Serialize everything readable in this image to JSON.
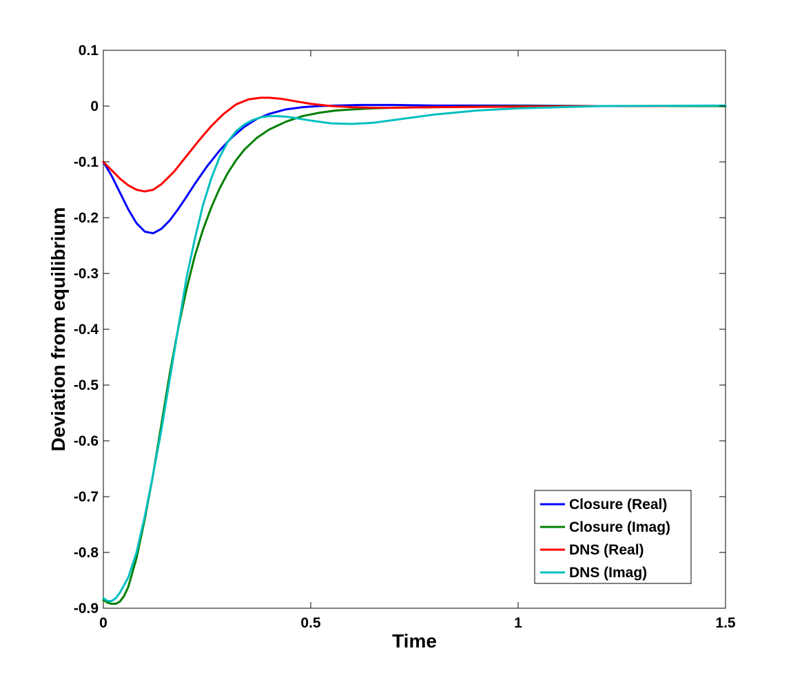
{
  "chart_data": {
    "type": "line",
    "title": "",
    "xlabel": "Time",
    "ylabel": "Deviation from equilibrium",
    "xlim": [
      0,
      1.5
    ],
    "ylim": [
      -0.9,
      0.1
    ],
    "xticks": [
      0,
      0.5,
      1,
      1.5
    ],
    "xtick_labels": [
      "0",
      "0.5",
      "1",
      "1.5"
    ],
    "yticks": [
      0.1,
      0,
      -0.1,
      -0.2,
      -0.3,
      -0.4,
      -0.5,
      -0.6,
      -0.7,
      -0.8,
      -0.9
    ],
    "ytick_labels": [
      "0.1",
      "0",
      "-0.1",
      "-0.2",
      "-0.3",
      "-0.4",
      "-0.5",
      "-0.6",
      "-0.7",
      "-0.8",
      "-0.9"
    ],
    "grid": false,
    "legend_position": "bottom-right",
    "series": [
      {
        "name": "Closure (Real)",
        "color": "#0000ff",
        "x": [
          0,
          0.02,
          0.04,
          0.06,
          0.08,
          0.1,
          0.12,
          0.14,
          0.16,
          0.18,
          0.2,
          0.22,
          0.25,
          0.28,
          0.31,
          0.34,
          0.37,
          0.4,
          0.44,
          0.48,
          0.52,
          0.56,
          0.62,
          0.7,
          0.8,
          0.9,
          1.0,
          1.2,
          1.5
        ],
        "y": [
          -0.1,
          -0.125,
          -0.155,
          -0.185,
          -0.21,
          -0.225,
          -0.228,
          -0.22,
          -0.205,
          -0.185,
          -0.163,
          -0.14,
          -0.108,
          -0.08,
          -0.056,
          -0.037,
          -0.023,
          -0.014,
          -0.006,
          -0.002,
          0.0,
          0.001,
          0.002,
          0.002,
          0.001,
          0.001,
          0.001,
          0.0,
          0.0
        ]
      },
      {
        "name": "Closure (Imag)",
        "color": "#007f00",
        "x": [
          0,
          0.01,
          0.02,
          0.03,
          0.04,
          0.05,
          0.06,
          0.08,
          0.1,
          0.12,
          0.14,
          0.16,
          0.18,
          0.2,
          0.22,
          0.24,
          0.26,
          0.28,
          0.3,
          0.32,
          0.34,
          0.37,
          0.4,
          0.44,
          0.48,
          0.52,
          0.56,
          0.6,
          0.65,
          0.7,
          0.8,
          0.9,
          1.0,
          1.2,
          1.5
        ],
        "y": [
          -0.885,
          -0.89,
          -0.892,
          -0.892,
          -0.888,
          -0.878,
          -0.862,
          -0.81,
          -0.74,
          -0.66,
          -0.57,
          -0.48,
          -0.4,
          -0.33,
          -0.27,
          -0.222,
          -0.182,
          -0.148,
          -0.12,
          -0.097,
          -0.078,
          -0.057,
          -0.042,
          -0.028,
          -0.018,
          -0.012,
          -0.008,
          -0.006,
          -0.004,
          -0.003,
          -0.002,
          -0.001,
          0.0,
          0.0,
          0.0
        ]
      },
      {
        "name": "DNS (Real)",
        "color": "#ff0000",
        "x": [
          0,
          0.02,
          0.04,
          0.06,
          0.08,
          0.1,
          0.12,
          0.14,
          0.17,
          0.2,
          0.23,
          0.26,
          0.29,
          0.32,
          0.35,
          0.38,
          0.4,
          0.43,
          0.46,
          0.5,
          0.55,
          0.6,
          0.65,
          0.7,
          0.8,
          1.0,
          1.2,
          1.36
        ],
        "y": [
          -0.1,
          -0.115,
          -0.13,
          -0.142,
          -0.15,
          -0.153,
          -0.15,
          -0.14,
          -0.118,
          -0.09,
          -0.062,
          -0.036,
          -0.014,
          0.003,
          0.012,
          0.015,
          0.015,
          0.013,
          0.009,
          0.004,
          0.0,
          -0.002,
          -0.003,
          -0.003,
          -0.002,
          -0.001,
          0.0,
          0.0
        ]
      },
      {
        "name": "DNS (Imag)",
        "color": "#00bfbf",
        "x": [
          0,
          0.01,
          0.02,
          0.03,
          0.04,
          0.06,
          0.08,
          0.1,
          0.12,
          0.14,
          0.16,
          0.18,
          0.2,
          0.22,
          0.24,
          0.26,
          0.28,
          0.3,
          0.32,
          0.34,
          0.36,
          0.38,
          0.4,
          0.42,
          0.44,
          0.46,
          0.5,
          0.55,
          0.6,
          0.65,
          0.7,
          0.8,
          0.9,
          1.0,
          1.2,
          1.5
        ],
        "y": [
          -0.882,
          -0.887,
          -0.887,
          -0.882,
          -0.872,
          -0.845,
          -0.8,
          -0.735,
          -0.66,
          -0.58,
          -0.49,
          -0.4,
          -0.31,
          -0.24,
          -0.178,
          -0.13,
          -0.092,
          -0.064,
          -0.045,
          -0.033,
          -0.025,
          -0.02,
          -0.018,
          -0.018,
          -0.019,
          -0.021,
          -0.026,
          -0.031,
          -0.032,
          -0.03,
          -0.025,
          -0.015,
          -0.008,
          -0.004,
          0.0,
          0.001
        ]
      }
    ]
  }
}
